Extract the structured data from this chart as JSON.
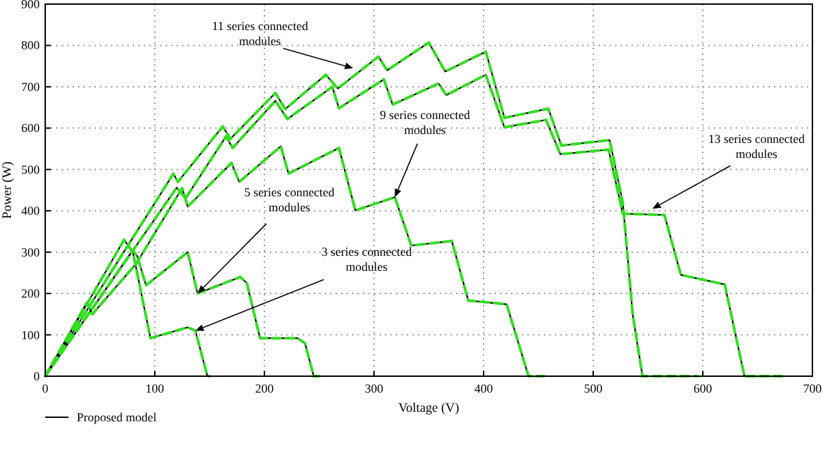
{
  "chart_data": {
    "type": "line",
    "xlabel": "Voltage (V)",
    "ylabel": "Power (W)",
    "xlim": [
      0,
      700
    ],
    "xticks": [
      0,
      100,
      200,
      300,
      400,
      500,
      600,
      700
    ],
    "ylim": [
      0,
      900
    ],
    "yticks": [
      0,
      100,
      200,
      300,
      400,
      500,
      600,
      700,
      800,
      900
    ],
    "grid": true,
    "legend": "bottom",
    "series": [
      {
        "name": "Proposed model",
        "color": "#000000",
        "line_style": "solid",
        "x": [
          0,
          72,
          80,
          96,
          130,
          137,
          148,
          150
        ],
        "values": [
          0,
          330,
          300,
          92,
          118,
          110,
          0,
          0
        ]
      },
      {
        "color": "#000000",
        "line_style": "solid",
        "x": [
          0,
          80,
          84,
          92,
          130,
          139,
          178,
          184,
          196,
          230,
          237,
          245,
          250
        ],
        "values": [
          0,
          305,
          290,
          220,
          300,
          200,
          240,
          225,
          92,
          92,
          80,
          0,
          0
        ]
      },
      {
        "color": "#000000",
        "line_style": "solid",
        "x": [
          0,
          38,
          43,
          83,
          125,
          130,
          170,
          177,
          215,
          222,
          268,
          283,
          319,
          334,
          371,
          386,
          421,
          441,
          455
        ],
        "values": [
          0,
          178,
          150,
          272,
          455,
          410,
          516,
          470,
          556,
          490,
          552,
          401,
          433,
          316,
          327,
          183,
          174,
          0,
          0
        ]
      },
      {
        "color": "#000000",
        "line_style": "solid",
        "x": [
          0,
          117,
          121,
          162,
          169,
          210,
          219,
          256,
          267,
          304,
          312,
          350,
          365,
          402,
          419,
          459,
          471,
          515,
          527,
          536,
          545,
          595
        ],
        "values": [
          0,
          490,
          470,
          604,
          574,
          685,
          646,
          729,
          696,
          773,
          740,
          807,
          737,
          785,
          625,
          647,
          558,
          571,
          420,
          150,
          0,
          0
        ]
      },
      {
        "color": "#000000",
        "line_style": "solid",
        "x": [
          0,
          120,
          128,
          165,
          171,
          210,
          221,
          262,
          268,
          309,
          317,
          359,
          366,
          402,
          419,
          457,
          470,
          514,
          527,
          565,
          580,
          620,
          638,
          675
        ],
        "values": [
          0,
          456,
          430,
          580,
          552,
          666,
          622,
          700,
          648,
          718,
          657,
          708,
          680,
          729,
          602,
          620,
          537,
          548,
          393,
          390,
          245,
          222,
          0,
          0
        ]
      },
      {
        "color": "#33dd22",
        "line_style": "dashed",
        "x": [
          0,
          72,
          80,
          96,
          130,
          137,
          148,
          150
        ],
        "values": [
          0,
          330,
          300,
          92,
          118,
          110,
          0,
          0
        ]
      },
      {
        "color": "#33dd22",
        "line_style": "dashed",
        "x": [
          0,
          80,
          84,
          92,
          130,
          139,
          178,
          184,
          196,
          230,
          237,
          245,
          250
        ],
        "values": [
          0,
          305,
          290,
          220,
          300,
          200,
          240,
          225,
          92,
          92,
          80,
          0,
          0
        ]
      },
      {
        "color": "#33dd22",
        "line_style": "dashed",
        "x": [
          0,
          38,
          43,
          83,
          125,
          130,
          170,
          177,
          215,
          222,
          268,
          283,
          319,
          334,
          371,
          386,
          421,
          441,
          455
        ],
        "values": [
          0,
          178,
          150,
          272,
          455,
          410,
          516,
          470,
          556,
          490,
          552,
          401,
          433,
          316,
          327,
          183,
          174,
          0,
          0
        ]
      },
      {
        "color": "#33dd22",
        "line_style": "dashed",
        "x": [
          0,
          117,
          121,
          162,
          169,
          210,
          219,
          256,
          267,
          304,
          312,
          350,
          365,
          402,
          419,
          459,
          471,
          515,
          527,
          536,
          545,
          595
        ],
        "values": [
          0,
          490,
          470,
          604,
          574,
          685,
          646,
          729,
          696,
          773,
          740,
          807,
          737,
          785,
          625,
          647,
          558,
          571,
          420,
          150,
          0,
          0
        ]
      },
      {
        "color": "#33dd22",
        "line_style": "dashed",
        "x": [
          0,
          120,
          128,
          165,
          171,
          210,
          221,
          262,
          268,
          309,
          317,
          359,
          366,
          402,
          419,
          457,
          470,
          514,
          527,
          565,
          580,
          620,
          638,
          675
        ],
        "values": [
          0,
          456,
          430,
          580,
          552,
          666,
          622,
          700,
          648,
          718,
          657,
          708,
          680,
          729,
          602,
          620,
          537,
          548,
          393,
          390,
          245,
          222,
          0,
          0
        ]
      }
    ],
    "annotations": [
      {
        "text": "11 series connected modules",
        "x": 281,
        "y": 745
      },
      {
        "text": "9 series connected modules",
        "x": 319,
        "y": 433
      },
      {
        "text": "5 series connected modules",
        "x": 139,
        "y": 200
      },
      {
        "text": "3 series connected modules",
        "x": 137,
        "y": 110
      },
      {
        "text": "13 series connected modules",
        "x": 554,
        "y": 405
      }
    ]
  }
}
